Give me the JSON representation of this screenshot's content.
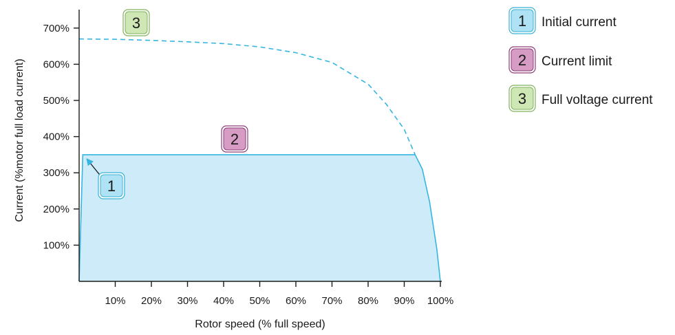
{
  "chart_data": {
    "type": "area",
    "xlabel": "Rotor speed (% full speed)",
    "ylabel": "Current (%motor full load current)",
    "xlim": [
      0,
      100
    ],
    "ylim": [
      0,
      750
    ],
    "x_ticks": [
      "10%",
      "20%",
      "30%",
      "40%",
      "50%",
      "60%",
      "70%",
      "80%",
      "90%",
      "100%"
    ],
    "y_ticks": [
      "100%",
      "200%",
      "300%",
      "400%",
      "500%",
      "600%",
      "700%"
    ],
    "series": [
      {
        "name": "Initial current",
        "marker": "1",
        "x": [
          1.5
        ],
        "y": [
          340
        ]
      },
      {
        "name": "Current limit",
        "marker": "2",
        "x": [
          0,
          1,
          93,
          95,
          97,
          99,
          100
        ],
        "y": [
          0,
          350,
          350,
          310,
          220,
          90,
          0
        ]
      },
      {
        "name": "Full voltage current",
        "marker": "3",
        "x": [
          0,
          10,
          20,
          30,
          40,
          50,
          60,
          70,
          80,
          85,
          90,
          93
        ],
        "y": [
          670,
          669,
          666,
          662,
          657,
          648,
          632,
          605,
          545,
          490,
          420,
          350
        ]
      }
    ],
    "colors": {
      "initial": "#aee2f4",
      "initial_border": "#36b2d4",
      "limit": "#d79cc4",
      "limit_border": "#8e3a78",
      "full": "#cfe6b5",
      "full_border": "#7fb25a",
      "area_fill": "#cdebf8",
      "curve": "#34b6e0"
    },
    "legend": [
      {
        "marker": "1",
        "label": "Initial current"
      },
      {
        "marker": "2",
        "label": "Current limit"
      },
      {
        "marker": "3",
        "label": "Full voltage current"
      }
    ]
  }
}
